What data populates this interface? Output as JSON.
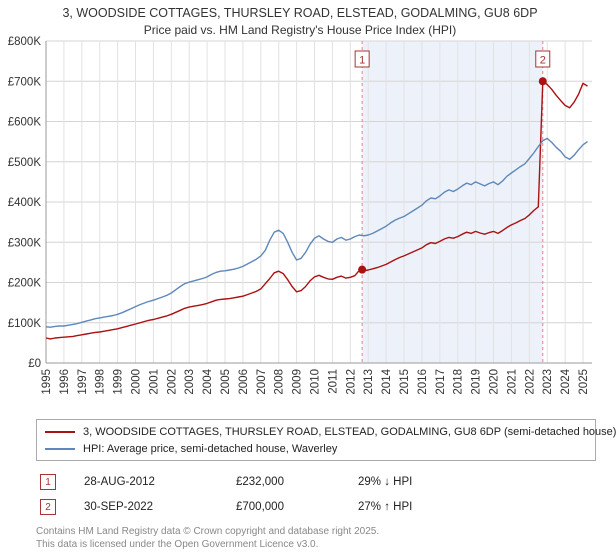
{
  "header": {
    "title": "3, WOODSIDE COTTAGES, THURSLEY ROAD, ELSTEAD, GODALMING, GU8 6DP",
    "subtitle": "Price paid vs. HM Land Registry's House Price Index (HPI)"
  },
  "chart_data": {
    "type": "line",
    "title": "Price paid vs. HM Land Registry's House Price Index (HPI)",
    "units": "GBP thousands",
    "x_start": 1995,
    "x_step": 0.25,
    "xlim": [
      1995,
      2025.5
    ],
    "ylim": [
      0,
      800
    ],
    "grid": true,
    "y_ticks": [
      {
        "value": 0,
        "label": "£0"
      },
      {
        "value": 100,
        "label": "£100K"
      },
      {
        "value": 200,
        "label": "£200K"
      },
      {
        "value": 300,
        "label": "£300K"
      },
      {
        "value": 400,
        "label": "£400K"
      },
      {
        "value": 500,
        "label": "£500K"
      },
      {
        "value": 600,
        "label": "£600K"
      },
      {
        "value": 700,
        "label": "£700K"
      },
      {
        "value": 800,
        "label": "£800K"
      }
    ],
    "x_ticks": [
      1995,
      1996,
      1997,
      1998,
      1999,
      2000,
      2001,
      2002,
      2003,
      2004,
      2005,
      2006,
      2007,
      2008,
      2009,
      2010,
      2011,
      2012,
      2013,
      2014,
      2015,
      2016,
      2017,
      2018,
      2019,
      2020,
      2021,
      2022,
      2023,
      2024,
      2025
    ],
    "shaded_region": [
      2012.66,
      2022.75
    ],
    "shade_color": "#dbe5f5",
    "series": [
      {
        "name": "3, WOODSIDE COTTAGES, THURSLEY ROAD, ELSTEAD, GODALMING, GU8 6DP (semi-detached house)",
        "color": "#aa1111",
        "values": [
          62,
          60,
          62,
          63,
          64,
          65,
          66,
          68,
          70,
          72,
          74,
          76,
          77,
          79,
          81,
          83,
          85,
          88,
          91,
          94,
          97,
          100,
          103,
          106,
          108,
          111,
          114,
          117,
          121,
          126,
          131,
          136,
          139,
          141,
          143,
          145,
          148,
          152,
          156,
          158,
          159,
          160,
          162,
          164,
          166,
          170,
          174,
          178,
          184,
          197,
          210,
          224,
          228,
          222,
          207,
          190,
          177,
          180,
          190,
          204,
          214,
          218,
          213,
          209,
          208,
          213,
          216,
          211,
          213,
          217,
          230,
          229,
          231,
          234,
          237,
          241,
          245,
          251,
          257,
          262,
          266,
          271,
          276,
          281,
          286,
          294,
          299,
          297,
          302,
          308,
          312,
          310,
          314,
          320,
          325,
          322,
          327,
          323,
          320,
          324,
          327,
          322,
          329,
          337,
          343,
          348,
          354,
          359,
          368,
          379,
          388,
          700,
          692,
          680,
          665,
          652,
          640,
          634,
          648,
          668,
          695,
          688
        ]
      },
      {
        "name": "HPI: Average price, semi-detached house, Waverley",
        "color": "#5e88bb",
        "values": [
          90,
          89,
          91,
          92,
          92,
          94,
          96,
          98,
          101,
          104,
          107,
          110,
          112,
          114,
          116,
          118,
          121,
          125,
          130,
          135,
          140,
          145,
          149,
          153,
          156,
          160,
          164,
          168,
          174,
          182,
          190,
          197,
          201,
          204,
          207,
          210,
          214,
          220,
          225,
          228,
          229,
          231,
          233,
          236,
          240,
          246,
          252,
          258,
          266,
          280,
          305,
          325,
          330,
          322,
          300,
          275,
          256,
          260,
          275,
          295,
          310,
          316,
          308,
          302,
          300,
          308,
          312,
          305,
          308,
          314,
          318,
          316,
          318,
          322,
          328,
          334,
          340,
          348,
          355,
          360,
          364,
          371,
          378,
          385,
          392,
          403,
          410,
          408,
          415,
          424,
          430,
          426,
          432,
          440,
          447,
          443,
          450,
          445,
          440,
          446,
          450,
          443,
          452,
          464,
          472,
          480,
          488,
          495,
          508,
          522,
          538,
          552,
          558,
          548,
          536,
          526,
          512,
          506,
          516,
          530,
          542,
          550
        ]
      }
    ],
    "markers": [
      {
        "label": "1",
        "x": 2012.66,
        "value": 232
      },
      {
        "label": "2",
        "x": 2022.75,
        "value": 700
      }
    ]
  },
  "legend": {
    "items": [
      {
        "label": "3, WOODSIDE COTTAGES, THURSLEY ROAD, ELSTEAD, GODALMING, GU8 6DP (semi-detached house)"
      },
      {
        "label": "HPI: Average price, semi-detached house, Waverley"
      }
    ]
  },
  "transactions": [
    {
      "num": "1",
      "date": "28-AUG-2012",
      "price": "£232,000",
      "hpi": "29% ↓ HPI"
    },
    {
      "num": "2",
      "date": "30-SEP-2022",
      "price": "£700,000",
      "hpi": "27% ↑ HPI"
    }
  ],
  "footer": {
    "line1": "Contains HM Land Registry data © Crown copyright and database right 2025.",
    "line2": "This data is licensed under the Open Government Licence v3.0."
  }
}
